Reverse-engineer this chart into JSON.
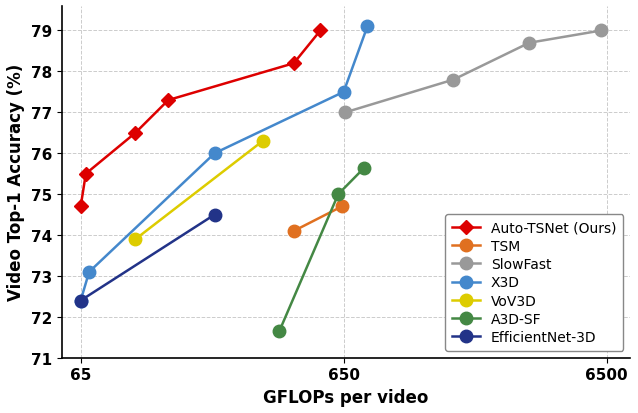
{
  "title": "",
  "xlabel": "GFLOPs per video",
  "ylabel": "Video Top-1 Accuracy (%)",
  "xlim": [
    55,
    8000
  ],
  "ylim": [
    71,
    79.6
  ],
  "yticks": [
    71,
    72,
    73,
    74,
    75,
    76,
    77,
    78,
    79
  ],
  "xtick_vals": [
    65,
    650,
    6500
  ],
  "xtick_labels": [
    "65",
    "650",
    "6500"
  ],
  "grid_color": "#cccccc",
  "series": [
    {
      "label": "Auto-TSNet (Ours)",
      "color": "#dd0000",
      "marker": "D",
      "markersize": 7,
      "linewidth": 1.8,
      "x": [
        65,
        68,
        105,
        140,
        420,
        530
      ],
      "y": [
        74.7,
        75.5,
        76.5,
        77.3,
        78.2,
        79.0
      ]
    },
    {
      "label": "TSM",
      "color": "#e07020",
      "marker": "o",
      "markersize": 9,
      "linewidth": 1.8,
      "x": [
        420,
        640
      ],
      "y": [
        74.1,
        74.7
      ]
    },
    {
      "label": "SlowFast",
      "color": "#999999",
      "marker": "o",
      "markersize": 9,
      "linewidth": 1.8,
      "x": [
        660,
        1700,
        3300,
        6200
      ],
      "y": [
        77.0,
        77.8,
        78.7,
        79.0
      ]
    },
    {
      "label": "X3D",
      "color": "#4488cc",
      "marker": "o",
      "markersize": 9,
      "linewidth": 1.8,
      "x": [
        65,
        70,
        210,
        650,
        800
      ],
      "y": [
        72.4,
        73.1,
        76.0,
        77.5,
        79.1
      ]
    },
    {
      "label": "VoV3D",
      "color": "#ddcc00",
      "marker": "o",
      "markersize": 9,
      "linewidth": 1.8,
      "x": [
        105,
        320
      ],
      "y": [
        73.9,
        76.3
      ]
    },
    {
      "label": "A3D-SF",
      "color": "#448844",
      "marker": "o",
      "markersize": 9,
      "linewidth": 1.8,
      "x": [
        370,
        620,
        780
      ],
      "y": [
        71.65,
        75.0,
        75.65
      ]
    },
    {
      "label": "EfficientNet-3D",
      "color": "#223388",
      "marker": "o",
      "markersize": 9,
      "linewidth": 1.8,
      "x": [
        65,
        210
      ],
      "y": [
        72.4,
        74.5
      ]
    }
  ],
  "legend_loc": "lower right",
  "legend_fontsize": 10,
  "axis_fontsize": 12,
  "tick_fontsize": 11
}
